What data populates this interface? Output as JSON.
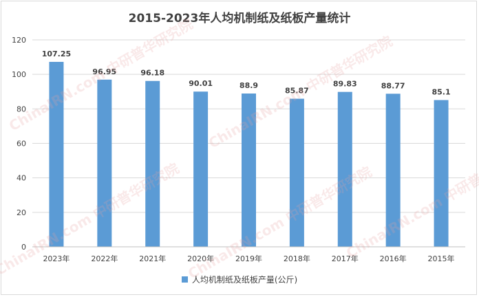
{
  "chart_data": {
    "type": "bar",
    "title": "2015-2023年人均机制纸及纸板产量统计",
    "categories": [
      "2023年",
      "2022年",
      "2021年",
      "2020年",
      "2019年",
      "2018年",
      "2017年",
      "2016年",
      "2015年"
    ],
    "series": [
      {
        "name": "人均机制纸及纸板产量(公斤)",
        "values": [
          107.25,
          96.95,
          96.18,
          90.01,
          88.9,
          85.87,
          89.83,
          88.77,
          85.1
        ]
      }
    ],
    "data_labels": [
      "107.25",
      "96.95",
      "96.18",
      "90.01",
      "88.9",
      "85.87",
      "89.83",
      "88.77",
      "85.1"
    ],
    "ylim": [
      0,
      120
    ],
    "yticks": [
      0,
      20,
      40,
      60,
      80,
      100,
      120
    ],
    "grid": true,
    "legend_position": "bottom",
    "color": "#5b9bd5"
  },
  "watermark": "ChinaIRN.com 中研普华研究院"
}
